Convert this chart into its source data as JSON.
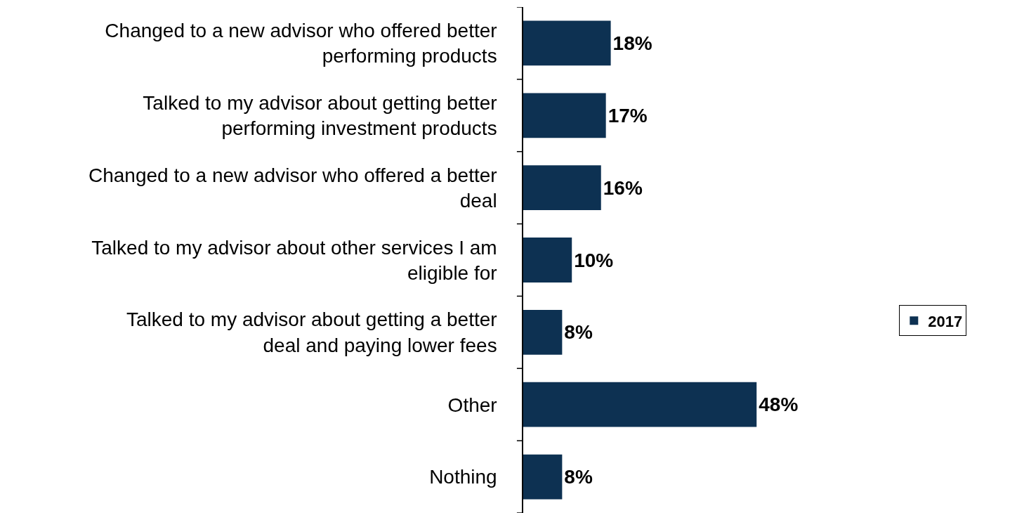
{
  "chart_data": {
    "type": "bar",
    "orientation": "horizontal",
    "categories": [
      "Changed to a new advisor who offered better performing products",
      "Talked to my advisor about getting better performing investment products",
      "Changed to a new advisor who offered a better deal",
      "Talked to my advisor about other services I am eligible for",
      "Talked to my advisor about getting a better deal and paying lower fees",
      "Other",
      "Nothing"
    ],
    "series": [
      {
        "name": "2017",
        "color": "#0d3152",
        "values": [
          18,
          17,
          16,
          10,
          8,
          48,
          8
        ],
        "value_labels": [
          "18%",
          "17%",
          "16%",
          "10%",
          "8%",
          "48%",
          "8%"
        ]
      }
    ],
    "legend": "right"
  }
}
